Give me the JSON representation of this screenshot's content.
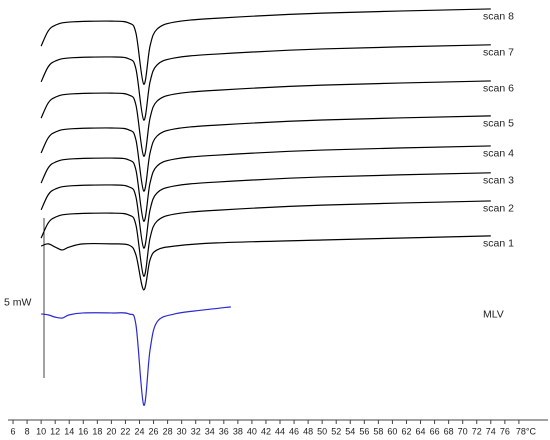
{
  "chart_data": {
    "type": "line",
    "x_lim_note_free": null,
    "xlim": [
      5,
      82
    ],
    "ylim": [
      0,
      13
    ],
    "xticks": [
      6,
      8,
      10,
      12,
      14,
      16,
      18,
      20,
      22,
      24,
      26,
      28,
      30,
      32,
      34,
      36,
      38,
      40,
      42,
      44,
      46,
      48,
      50,
      52,
      54,
      56,
      58,
      60,
      62,
      64,
      66,
      68,
      70,
      72,
      74,
      76,
      {
        "value": 78,
        "label": "78°C"
      }
    ],
    "scale_bar": {
      "value": 5,
      "label": "5 mW"
    },
    "series": [
      {
        "name": "scan 8",
        "color": "#000000",
        "x": [
          10,
          11,
          12,
          14,
          20,
          22.5,
          23.5,
          24.6,
          25.5,
          26.5,
          29,
          35,
          50,
          74
        ],
        "values": [
          11.56,
          12.03,
          12.21,
          12.31,
          12.34,
          12.28,
          11.96,
          10.37,
          11.56,
          12.09,
          12.31,
          12.43,
          12.59,
          12.72
        ]
      },
      {
        "name": "scan 7",
        "color": "#000000",
        "x": [
          10,
          11,
          12,
          14,
          20,
          22.5,
          23.5,
          24.6,
          25.5,
          26.5,
          29,
          35,
          50,
          74
        ],
        "values": [
          10.44,
          10.91,
          11.09,
          11.19,
          11.22,
          11.16,
          10.84,
          9.25,
          10.44,
          10.97,
          11.19,
          11.31,
          11.47,
          11.6
        ]
      },
      {
        "name": "scan 6",
        "color": "#000000",
        "x": [
          10,
          11,
          12,
          14,
          20,
          22.5,
          23.5,
          24.6,
          25.5,
          26.5,
          29,
          35,
          50,
          74
        ],
        "values": [
          9.31,
          9.78,
          9.96,
          10.06,
          10.09,
          10.03,
          9.71,
          8.12,
          9.31,
          9.84,
          10.06,
          10.18,
          10.34,
          10.47
        ]
      },
      {
        "name": "scan 5",
        "color": "#000000",
        "x": [
          10,
          11,
          12,
          14,
          20,
          22.5,
          23.5,
          24.6,
          25.5,
          26.5,
          29,
          35,
          50,
          74
        ],
        "values": [
          8.22,
          8.69,
          8.87,
          8.97,
          9.0,
          8.94,
          8.62,
          7.03,
          8.22,
          8.75,
          8.97,
          9.09,
          9.25,
          9.38
        ]
      },
      {
        "name": "scan 4",
        "color": "#000000",
        "x": [
          10,
          11,
          12,
          14,
          20,
          22.5,
          23.5,
          24.6,
          25.5,
          26.5,
          29,
          35,
          50,
          74
        ],
        "values": [
          7.28,
          7.75,
          7.93,
          8.03,
          8.06,
          8.0,
          7.68,
          6.09,
          7.28,
          7.81,
          8.03,
          8.15,
          8.31,
          8.44
        ]
      },
      {
        "name": "scan 3",
        "color": "#000000",
        "x": [
          10,
          11,
          12,
          14,
          20,
          22.5,
          23.5,
          24.6,
          25.5,
          26.5,
          29,
          35,
          50,
          74
        ],
        "values": [
          6.44,
          6.91,
          7.09,
          7.19,
          7.22,
          7.16,
          6.84,
          5.25,
          6.44,
          6.97,
          7.19,
          7.31,
          7.47,
          7.6
        ]
      },
      {
        "name": "scan 2",
        "color": "#000000",
        "x": [
          10,
          11,
          12,
          14,
          20,
          22.5,
          23.5,
          24.6,
          25.5,
          26.5,
          29,
          35,
          50,
          74
        ],
        "values": [
          5.56,
          6.03,
          6.21,
          6.31,
          6.34,
          6.28,
          5.96,
          4.37,
          5.56,
          6.09,
          6.31,
          6.43,
          6.59,
          6.72
        ]
      },
      {
        "name": "scan 1",
        "color": "#000000",
        "x": [
          10,
          11,
          12,
          13,
          14,
          16,
          20,
          22.5,
          23.5,
          24.6,
          25.5,
          26.5,
          29,
          35,
          50,
          74
        ],
        "values": [
          5.31,
          5.38,
          5.28,
          5.19,
          5.28,
          5.38,
          5.38,
          5.34,
          5.03,
          3.94,
          4.88,
          5.19,
          5.31,
          5.41,
          5.5,
          5.63
        ]
      },
      {
        "name": "MLV",
        "color": "#2a2ad0",
        "x": [
          10,
          11,
          12,
          13,
          14,
          16,
          20,
          22.5,
          23.5,
          24.6,
          25.5,
          26.5,
          29,
          33,
          37
        ],
        "values": [
          3.19,
          3.16,
          3.09,
          3.06,
          3.16,
          3.22,
          3.22,
          3.19,
          2.84,
          0.34,
          2.06,
          2.94,
          3.19,
          3.31,
          3.41
        ]
      }
    ]
  }
}
